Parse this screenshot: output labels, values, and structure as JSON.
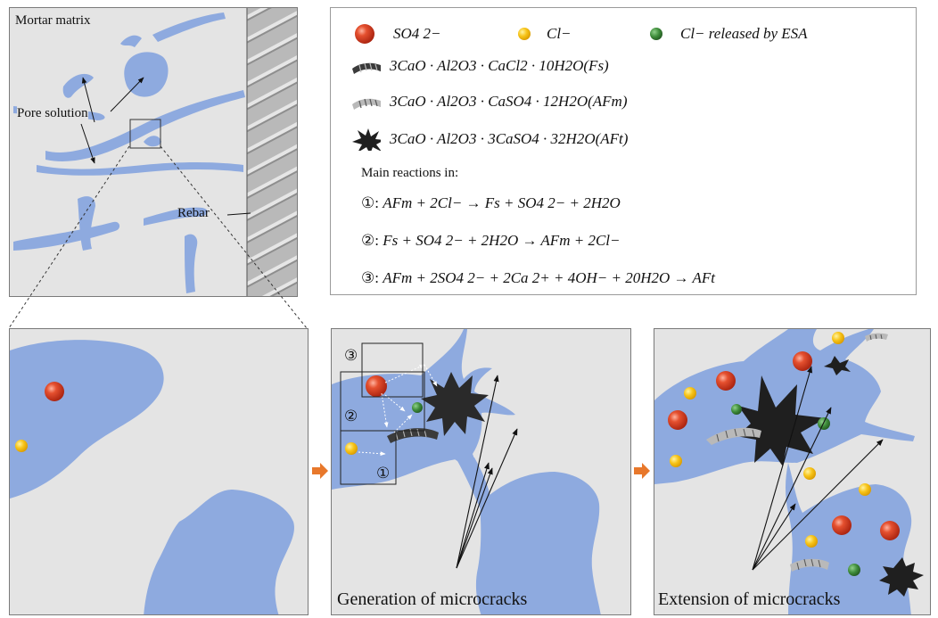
{
  "overview": {
    "mortar_label": "Mortar matrix",
    "pore_label": "Pore solution",
    "rebar_label": "Rebar"
  },
  "legend": {
    "so4": "SO4 2−",
    "cl": "Cl−",
    "cl_esa": "Cl− released by ESA",
    "fs": "3CaO · Al2O3 · CaCl2 · 10H2O(Fs)",
    "afm": "3CaO · Al2O3 · CaSO4 · 12H2O(AFm)",
    "aft": "3CaO · Al2O3 · 3CaSO4 · 32H2O(AFt)",
    "main_reactions": "Main reactions in:",
    "r1_num": "①",
    "r1": "AFm + 2Cl− → Fs + SO4 2− + 2H2O",
    "r2_num": "②",
    "r2": "Fs + SO4 2− + 2H2O → AFm + 2Cl−",
    "r3_num": "③",
    "r3": "AFm + 2SO4 2− + 2Ca 2+ + 4OH− + 20H2O → AFt"
  },
  "panels": {
    "middle_caption": "Generation of microcracks",
    "right_caption": "Extension of microcracks",
    "box1": "①",
    "box2": "②",
    "box3": "③"
  },
  "colors": {
    "pore": "#8eaadf",
    "mortar": "#e4e4e4",
    "so4": "#d8452b",
    "cl": "#f5c11a",
    "cl_esa": "#3d8b3a",
    "arrow": "#e8782b"
  }
}
